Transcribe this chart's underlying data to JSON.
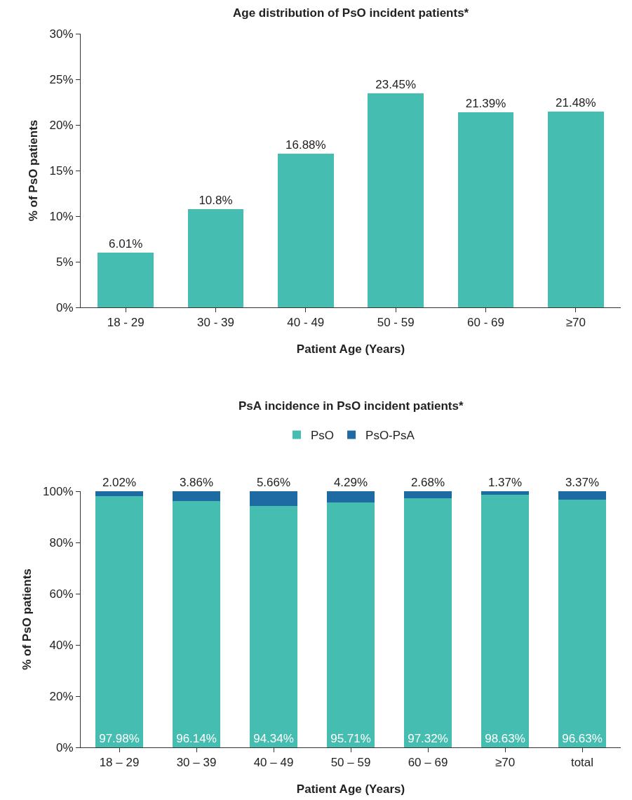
{
  "chart_data": [
    {
      "type": "bar",
      "title": "Age distribution of PsO incident patients*",
      "xlabel": "Patient Age (Years)",
      "ylabel": "% of PsO patients",
      "categories": [
        "18 - 29",
        "30 - 39",
        "40 - 49",
        "50 - 59",
        "60 - 69",
        "≥70"
      ],
      "values": [
        6.01,
        10.8,
        16.88,
        23.45,
        21.39,
        21.48
      ],
      "value_labels": [
        "6.01%",
        "10.8%",
        "16.88%",
        "23.45%",
        "21.39%",
        "21.48%"
      ],
      "color": "#45bdb0",
      "ylim": [
        0,
        30
      ],
      "yticks": [
        {
          "value": 0,
          "label": "0%"
        },
        {
          "value": 5,
          "label": "5%"
        },
        {
          "value": 10,
          "label": "10%"
        },
        {
          "value": 15,
          "label": "15%"
        },
        {
          "value": 20,
          "label": "20%"
        },
        {
          "value": 25,
          "label": "25%"
        },
        {
          "value": 30,
          "label": "30%"
        }
      ],
      "legend": false
    },
    {
      "type": "bar",
      "stacked": true,
      "title": "PsA incidence in PsO incident patients*",
      "xlabel": "Patient Age (Years)",
      "ylabel": "% of PsO patients",
      "categories": [
        "18 – 29",
        "30 – 39",
        "40 – 49",
        "50 – 59",
        "60 – 69",
        "≥70",
        "total"
      ],
      "series": [
        {
          "name": "PsO",
          "color": "#45bdb0",
          "values": [
            97.98,
            96.14,
            94.34,
            95.71,
            97.32,
            98.63,
            96.63
          ],
          "value_labels": [
            "97.98%",
            "96.14%",
            "94.34%",
            "95.71%",
            "97.32%",
            "98.63%",
            "96.63%"
          ]
        },
        {
          "name": "PsO-PsA",
          "color": "#1e6aa3",
          "values": [
            2.02,
            3.86,
            5.66,
            4.29,
            2.68,
            1.37,
            3.37
          ],
          "value_labels": [
            "2.02%",
            "3.86%",
            "5.66%",
            "4.29%",
            "2.68%",
            "1.37%",
            "3.37%"
          ]
        }
      ],
      "ylim": [
        0,
        100
      ],
      "yticks": [
        {
          "value": 0,
          "label": "0%"
        },
        {
          "value": 20,
          "label": "20%"
        },
        {
          "value": 40,
          "label": "40%"
        },
        {
          "value": 60,
          "label": "60%"
        },
        {
          "value": 80,
          "label": "80%"
        },
        {
          "value": 100,
          "label": "100%"
        }
      ],
      "legend": "top"
    }
  ]
}
